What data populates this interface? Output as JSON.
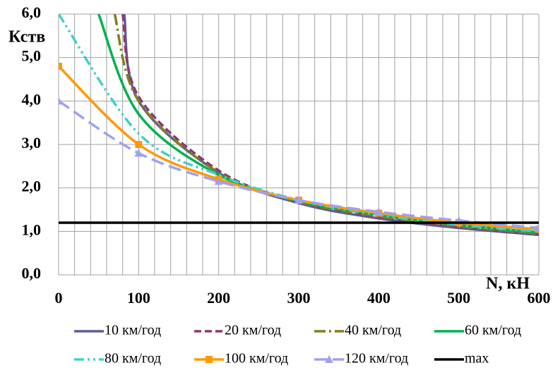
{
  "chart_data": {
    "type": "line",
    "y_label": "Кств",
    "x_label": "N, кН",
    "xlim": [
      0,
      600
    ],
    "ylim": [
      0,
      6
    ],
    "xticks": [
      0,
      100,
      200,
      300,
      400,
      500,
      600
    ],
    "yticks": [
      {
        "value": 0,
        "label": "0,0"
      },
      {
        "value": 1,
        "label": "1,0"
      },
      {
        "value": 2,
        "label": "2,0"
      },
      {
        "value": 3,
        "label": "3,0"
      },
      {
        "value": 4,
        "label": "4,0"
      },
      {
        "value": 5,
        "label": "5,0"
      },
      {
        "value": 6,
        "label": "6,0"
      }
    ],
    "grid": true,
    "series": [
      {
        "name": "10 км/год",
        "color": "#5b5f97",
        "x": [
          82,
          100,
          200,
          300,
          400,
          500,
          600
        ],
        "values": [
          6.0,
          4.0,
          2.35,
          1.65,
          1.3,
          1.08,
          0.92
        ]
      },
      {
        "name": "20 км/год",
        "color": "#8e3a6e",
        "x": [
          80,
          100,
          200,
          300,
          400,
          500,
          600
        ],
        "values": [
          6.0,
          4.1,
          2.4,
          1.68,
          1.33,
          1.1,
          0.93
        ]
      },
      {
        "name": "40 км/год",
        "color": "#7f7f1f",
        "x": [
          70,
          100,
          200,
          300,
          400,
          500,
          600
        ],
        "values": [
          6.0,
          4.0,
          2.35,
          1.68,
          1.35,
          1.12,
          0.95
        ]
      },
      {
        "name": "60 км/год",
        "color": "#00b050",
        "x": [
          50,
          100,
          200,
          300,
          400,
          500,
          600
        ],
        "values": [
          6.0,
          3.7,
          2.3,
          1.7,
          1.38,
          1.15,
          0.98
        ]
      },
      {
        "name": "80 км/год",
        "color": "#40d0c8",
        "x": [
          0,
          100,
          200,
          300,
          400,
          500,
          600
        ],
        "values": [
          6.0,
          3.25,
          2.3,
          1.72,
          1.38,
          1.15,
          1.0
        ]
      },
      {
        "name": "100 км/год",
        "color": "#ff9900",
        "marker": "square",
        "x": [
          0,
          100,
          200,
          300,
          400,
          500,
          600
        ],
        "values": [
          4.8,
          3.0,
          2.2,
          1.72,
          1.42,
          1.2,
          1.05
        ]
      },
      {
        "name": "120 км/год",
        "color": "#a0a0f0",
        "marker": "triangle",
        "x": [
          0,
          100,
          200,
          300,
          400,
          500,
          600
        ],
        "values": [
          4.0,
          2.8,
          2.15,
          1.72,
          1.45,
          1.25,
          1.08
        ]
      },
      {
        "name": "max",
        "color": "#000000",
        "x": [
          0,
          600
        ],
        "values": [
          1.2,
          1.2
        ]
      }
    ]
  }
}
